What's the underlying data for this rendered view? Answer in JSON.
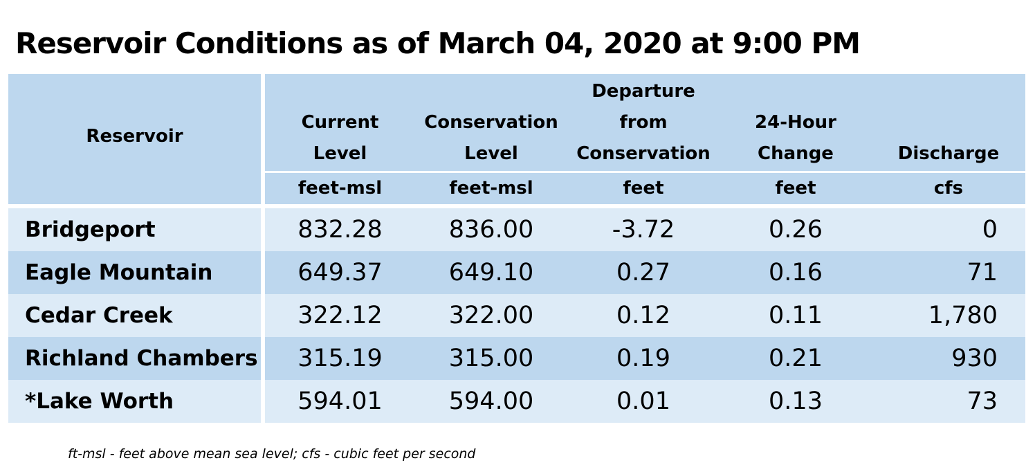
{
  "title": "Reservoir Conditions as of March 04, 2020 at 9:00 PM",
  "columns": {
    "reservoir": {
      "header": "Reservoir"
    },
    "current": {
      "header_lines": [
        "Current",
        "Level"
      ],
      "unit": "feet-msl"
    },
    "conservation": {
      "header_lines": [
        "Conservation",
        "Level"
      ],
      "unit": "feet-msl"
    },
    "departure": {
      "header_lines": [
        "Departure",
        "from",
        "Conservation"
      ],
      "unit": "feet"
    },
    "change": {
      "header_lines": [
        "24-Hour",
        "Change"
      ],
      "unit": "feet"
    },
    "discharge": {
      "header_lines": [
        "Discharge"
      ],
      "unit": "cfs"
    }
  },
  "rows": [
    {
      "name": "Bridgeport",
      "current": "832.28",
      "conservation": "836.00",
      "departure": "-3.72",
      "change": "0.26",
      "discharge": "0"
    },
    {
      "name": "Eagle Mountain",
      "current": "649.37",
      "conservation": "649.10",
      "departure": "0.27",
      "change": "0.16",
      "discharge": "71"
    },
    {
      "name": "Cedar Creek",
      "current": "322.12",
      "conservation": "322.00",
      "departure": "0.12",
      "change": "0.11",
      "discharge": "1,780"
    },
    {
      "name": "Richland Chambers",
      "current": "315.19",
      "conservation": "315.00",
      "departure": "0.19",
      "change": "0.21",
      "discharge": "930"
    },
    {
      "name": "*Lake Worth",
      "current": "594.01",
      "conservation": "594.00",
      "departure": "0.01",
      "change": "0.13",
      "discharge": "73"
    }
  ],
  "footnote": "ft-msl - feet above mean sea level; cfs - cubic feet per second",
  "colors": {
    "header_bg": "#bdd7ee",
    "row_light": "#ddebf7",
    "row_dark": "#bdd7ee"
  }
}
